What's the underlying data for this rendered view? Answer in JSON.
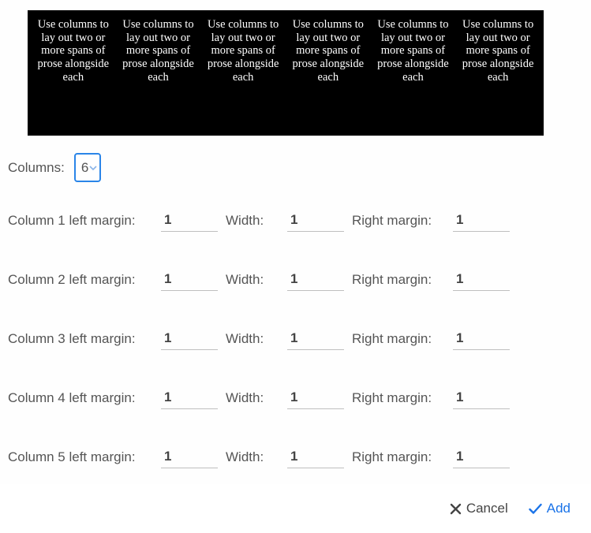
{
  "preview": {
    "column_count": 6,
    "sample_text": "Use columns to lay out two or more spans of prose alongside each",
    "background": "#000000",
    "text_color": "#ffffff",
    "font_family_serif": true
  },
  "columns": {
    "label": "Columns:",
    "value": "6",
    "focus_border_color": "#2a85e8"
  },
  "labels": {
    "left_margin_prefix": "Column ",
    "left_margin_suffix": " left margin:",
    "width": "Width:",
    "right_margin": "Right margin:"
  },
  "rows": [
    {
      "index": 1,
      "left": "1",
      "width": "1",
      "right": "1"
    },
    {
      "index": 2,
      "left": "1",
      "width": "1",
      "right": "1"
    },
    {
      "index": 3,
      "left": "1",
      "width": "1",
      "right": "1"
    },
    {
      "index": 4,
      "left": "1",
      "width": "1",
      "right": "1"
    },
    {
      "index": 5,
      "left": "1",
      "width": "1",
      "right": "1"
    }
  ],
  "footer": {
    "cancel": "Cancel",
    "add": "Add",
    "add_color": "#1a73e8",
    "cancel_color": "#444444"
  }
}
